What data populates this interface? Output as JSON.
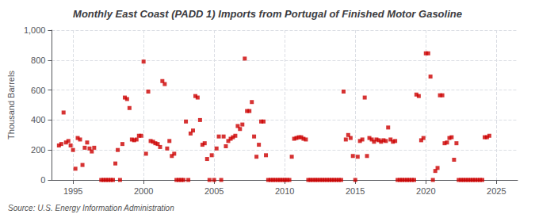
{
  "chart_data": {
    "type": "scatter",
    "title": "Monthly East Coast (PADD 1) Imports from Portugal of Finished Motor Gasoline",
    "ylabel": "Thousand Barrels",
    "source": "Source: U.S. Energy Information Administration",
    "color": "#cc0000",
    "marker": "square",
    "grid": true,
    "xlim": [
      1993.5,
      2026.5
    ],
    "xticks": [
      1995,
      2000,
      2005,
      2010,
      2015,
      2020,
      2025
    ],
    "ylim": [
      0,
      1000
    ],
    "yticks": [
      0,
      200,
      400,
      600,
      800,
      {
        "value": 1000,
        "label": "1,000"
      }
    ],
    "x": [
      1994.0,
      1994.17,
      1994.33,
      1994.5,
      1994.67,
      1994.83,
      1995.0,
      1995.17,
      1995.33,
      1995.5,
      1995.67,
      1995.83,
      1996.0,
      1996.17,
      1996.33,
      1996.5,
      1997.0,
      1997.17,
      1997.33,
      1997.5,
      1997.67,
      1997.83,
      1998.0,
      1998.17,
      1998.33,
      1998.5,
      1998.67,
      1998.83,
      1999.0,
      1999.17,
      1999.33,
      1999.5,
      1999.67,
      1999.83,
      2000.0,
      2000.17,
      2000.33,
      2000.5,
      2000.67,
      2000.83,
      2001.0,
      2001.17,
      2001.33,
      2001.5,
      2001.67,
      2001.83,
      2002.0,
      2002.17,
      2002.33,
      2002.5,
      2002.67,
      2002.83,
      2003.0,
      2003.17,
      2003.33,
      2003.5,
      2003.67,
      2003.83,
      2004.0,
      2004.17,
      2004.33,
      2004.5,
      2004.67,
      2004.83,
      2005.0,
      2005.17,
      2005.33,
      2005.5,
      2005.67,
      2005.83,
      2006.0,
      2006.17,
      2006.33,
      2006.5,
      2006.67,
      2006.83,
      2007.0,
      2007.17,
      2007.33,
      2007.5,
      2007.67,
      2007.83,
      2008.0,
      2008.17,
      2008.33,
      2008.5,
      2008.67,
      2008.83,
      2009.0,
      2009.17,
      2009.33,
      2009.5,
      2009.67,
      2009.83,
      2010.0,
      2010.17,
      2010.33,
      2010.5,
      2010.67,
      2010.83,
      2011.0,
      2011.17,
      2011.33,
      2011.5,
      2011.67,
      2011.83,
      2012.0,
      2012.17,
      2012.33,
      2012.5,
      2012.67,
      2012.83,
      2013.0,
      2013.17,
      2013.33,
      2013.5,
      2013.67,
      2013.83,
      2014.0,
      2014.17,
      2014.33,
      2014.5,
      2014.67,
      2014.83,
      2015.0,
      2015.17,
      2015.33,
      2015.5,
      2015.67,
      2015.83,
      2016.0,
      2016.17,
      2016.33,
      2016.5,
      2016.67,
      2016.83,
      2017.0,
      2017.17,
      2017.33,
      2017.5,
      2017.67,
      2017.83,
      2018.0,
      2018.17,
      2018.33,
      2018.5,
      2018.67,
      2018.83,
      2019.0,
      2019.17,
      2019.33,
      2019.5,
      2019.67,
      2019.83,
      2020.0,
      2020.17,
      2020.33,
      2020.5,
      2020.67,
      2020.83,
      2021.0,
      2021.17,
      2021.33,
      2021.5,
      2021.67,
      2021.83,
      2022.0,
      2022.17,
      2022.33,
      2022.5,
      2022.67,
      2022.83,
      2023.0,
      2023.17,
      2023.33,
      2023.5,
      2023.67,
      2023.83,
      2024.0,
      2024.17,
      2024.33,
      2024.5
    ],
    "values": [
      230,
      240,
      450,
      250,
      260,
      230,
      200,
      75,
      280,
      270,
      100,
      215,
      250,
      210,
      190,
      215,
      0,
      0,
      0,
      0,
      0,
      0,
      110,
      200,
      0,
      240,
      550,
      540,
      480,
      270,
      265,
      270,
      295,
      295,
      790,
      175,
      590,
      260,
      255,
      245,
      240,
      220,
      660,
      640,
      210,
      260,
      160,
      175,
      0,
      0,
      0,
      0,
      390,
      0,
      310,
      330,
      560,
      550,
      400,
      235,
      245,
      140,
      0,
      165,
      0,
      210,
      290,
      0,
      290,
      225,
      260,
      275,
      285,
      295,
      360,
      340,
      370,
      810,
      460,
      460,
      520,
      290,
      155,
      235,
      390,
      390,
      165,
      0,
      0,
      0,
      0,
      0,
      0,
      0,
      0,
      0,
      0,
      155,
      275,
      280,
      285,
      285,
      275,
      270,
      0,
      0,
      0,
      0,
      0,
      0,
      0,
      0,
      0,
      0,
      0,
      0,
      0,
      0,
      0,
      590,
      270,
      300,
      280,
      160,
      0,
      155,
      260,
      270,
      550,
      160,
      280,
      270,
      255,
      270,
      265,
      255,
      265,
      260,
      350,
      270,
      255,
      260,
      0,
      0,
      0,
      0,
      0,
      0,
      0,
      0,
      570,
      560,
      265,
      280,
      845,
      845,
      690,
      0,
      60,
      80,
      565,
      565,
      245,
      250,
      280,
      285,
      135,
      245,
      0,
      0,
      0,
      0,
      0,
      0,
      0,
      0,
      0,
      0,
      0,
      285,
      285,
      295
    ]
  }
}
